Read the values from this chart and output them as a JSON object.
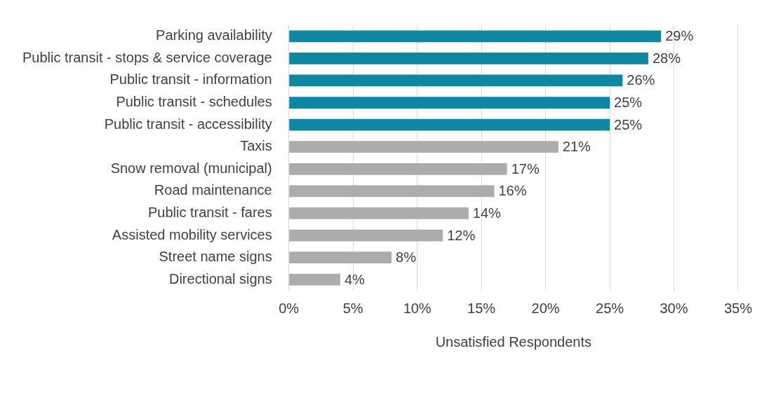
{
  "chart_data": {
    "type": "bar",
    "orientation": "horizontal",
    "xlabel": "Unsatisfied Respondents",
    "categories": [
      "Parking availability",
      "Public transit - stops & service coverage",
      "Public transit - information",
      "Public transit - schedules",
      "Public transit - accessibility",
      "Taxis",
      "Snow removal (municipal)",
      "Road maintenance",
      "Public transit - fares",
      "Assisted mobility services",
      "Street name signs",
      "Directional signs"
    ],
    "values": [
      29,
      28,
      26,
      25,
      25,
      21,
      17,
      16,
      14,
      12,
      8,
      4
    ],
    "colors": [
      "#0e87a3",
      "#0e87a3",
      "#0e87a3",
      "#0e87a3",
      "#0e87a3",
      "#aeabab",
      "#aeabab",
      "#aeabab",
      "#aeabab",
      "#aeabab",
      "#aeabab",
      "#aeabab"
    ],
    "value_labels": [
      "29%",
      "28%",
      "26%",
      "25%",
      "25%",
      "21%",
      "17%",
      "16%",
      "14%",
      "12%",
      "8%",
      "4%"
    ],
    "xlim": [
      0,
      35
    ],
    "xticks": [
      {
        "value": 0,
        "label": "0%"
      },
      {
        "value": 5,
        "label": "5%"
      },
      {
        "value": 10,
        "label": "10%"
      },
      {
        "value": 15,
        "label": "15%"
      },
      {
        "value": 20,
        "label": "20%"
      },
      {
        "value": 25,
        "label": "25%"
      },
      {
        "value": 30,
        "label": "30%"
      },
      {
        "value": 35,
        "label": "35%"
      }
    ],
    "grid": "x",
    "legend": false
  }
}
